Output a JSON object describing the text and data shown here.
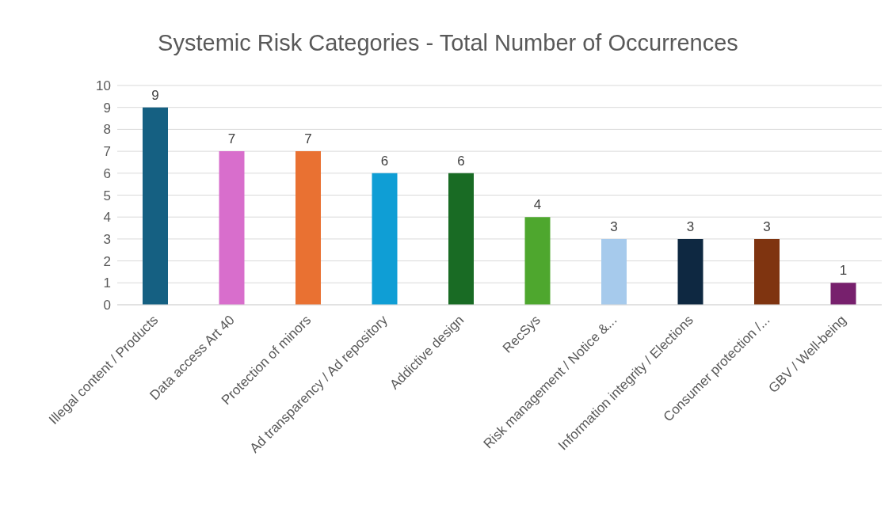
{
  "chart_data": {
    "type": "bar",
    "title": "Systemic Risk Categories - Total Number of Occurrences",
    "categories": [
      "Illegal content / Products",
      "Data access Art 40",
      "Protection of minors",
      "Ad transparency / Ad repository",
      "Addictive design",
      "RecSys",
      "Risk management / Notice &...",
      "Information integrity / Elections",
      "Consumer protection /...",
      "GBV / Well-being"
    ],
    "values": [
      9,
      7,
      7,
      6,
      6,
      4,
      3,
      3,
      3,
      1
    ],
    "colors": [
      "#156082",
      "#d86ecc",
      "#e97132",
      "#0f9ed5",
      "#196b24",
      "#4ea72e",
      "#a6caec",
      "#0e2841",
      "#7f3410",
      "#77206d"
    ],
    "ylim": [
      0,
      10
    ],
    "yticks": [
      0,
      1,
      2,
      3,
      4,
      5,
      6,
      7,
      8,
      9,
      10
    ],
    "grid": "y",
    "data_labels": true
  }
}
